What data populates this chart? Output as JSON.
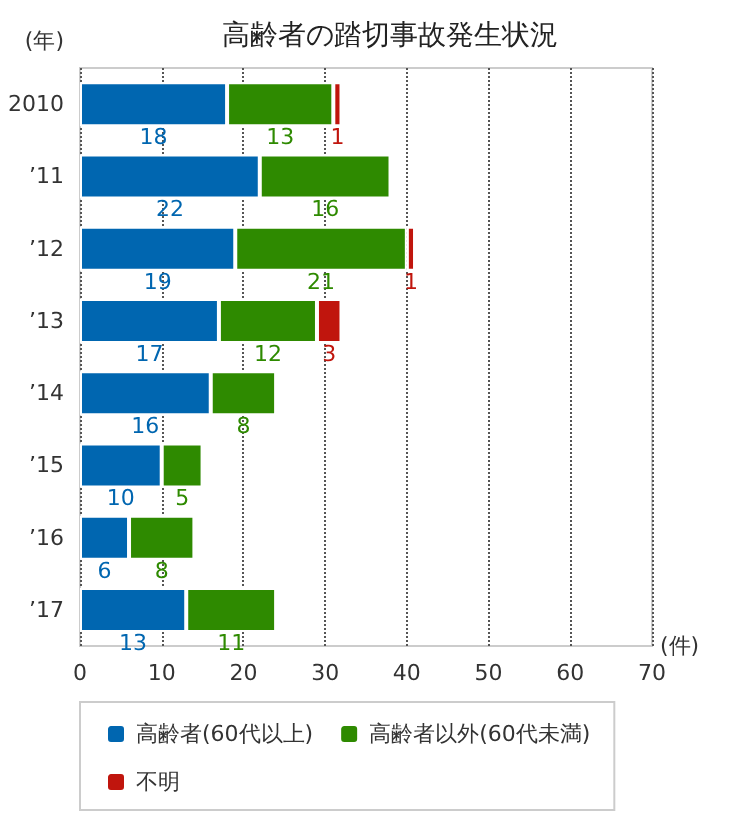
{
  "chart_data": {
    "type": "bar",
    "orientation": "horizontal",
    "stacked": true,
    "title": "高齢者の踏切事故発生状況",
    "xlabel": "(件)",
    "ylabel": "(年)",
    "categories": [
      "2010",
      "’11",
      "’12",
      "’13",
      "’14",
      "’15",
      "’16",
      "’17"
    ],
    "series": [
      {
        "name": "高齢者(60代以上)",
        "color": "#0066b0",
        "values": [
          18,
          22,
          19,
          17,
          16,
          10,
          6,
          13
        ]
      },
      {
        "name": "高齢者以外(60代未満)",
        "color": "#2e8a00",
        "values": [
          13,
          16,
          21,
          12,
          8,
          5,
          8,
          11
        ]
      },
      {
        "name": "不明",
        "color": "#c0150d",
        "values": [
          1,
          null,
          1,
          3,
          null,
          null,
          null,
          null
        ]
      }
    ],
    "xlim": [
      0,
      70
    ],
    "xticks": [
      0,
      10,
      20,
      30,
      40,
      50,
      60,
      70
    ],
    "grid": "x",
    "legend": "bottom",
    "data_labels": true
  }
}
